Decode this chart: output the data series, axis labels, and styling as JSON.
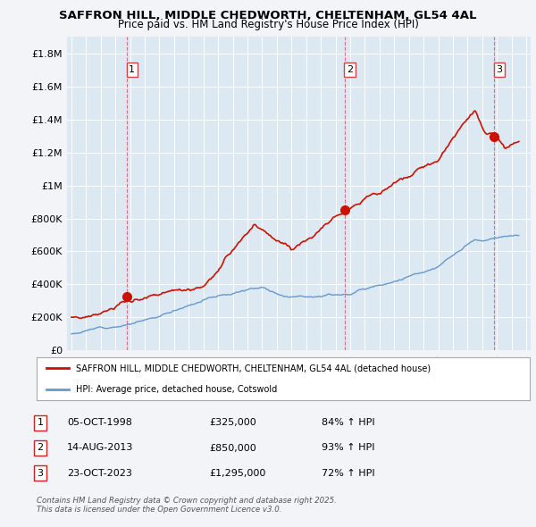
{
  "title": "SAFFRON HILL, MIDDLE CHEDWORTH, CHELTENHAM, GL54 4AL",
  "subtitle": "Price paid vs. HM Land Registry's House Price Index (HPI)",
  "legend_line1": "SAFFRON HILL, MIDDLE CHEDWORTH, CHELTENHAM, GL54 4AL (detached house)",
  "legend_line2": "HPI: Average price, detached house, Cotswold",
  "footer_line1": "Contains HM Land Registry data © Crown copyright and database right 2025.",
  "footer_line2": "This data is licensed under the Open Government Licence v3.0.",
  "transactions": [
    {
      "num": 1,
      "date": "05-OCT-1998",
      "price": "£325,000",
      "hpi": "84% ↑ HPI",
      "year": 1998.77
    },
    {
      "num": 2,
      "date": "14-AUG-2013",
      "price": "£850,000",
      "hpi": "93% ↑ HPI",
      "year": 2013.62
    },
    {
      "num": 3,
      "date": "23-OCT-2023",
      "price": "£1,295,000",
      "hpi": "72% ↑ HPI",
      "year": 2023.81
    }
  ],
  "transaction_prices": [
    325000,
    850000,
    1295000
  ],
  "hpi_color": "#6699cc",
  "price_color": "#cc1100",
  "dashed_line_color": "#cc4444",
  "background_color": "#f2f4f8",
  "plot_bg_color": "#dce8f2",
  "ylim": [
    0,
    1900000
  ],
  "yticks": [
    0,
    200000,
    400000,
    600000,
    800000,
    1000000,
    1200000,
    1400000,
    1600000,
    1800000
  ],
  "xlim_start": 1994.7,
  "xlim_end": 2026.3,
  "xticks": [
    1995,
    1996,
    1997,
    1998,
    1999,
    2000,
    2001,
    2002,
    2003,
    2004,
    2005,
    2006,
    2007,
    2008,
    2009,
    2010,
    2011,
    2012,
    2013,
    2014,
    2015,
    2016,
    2017,
    2018,
    2019,
    2020,
    2021,
    2022,
    2023,
    2024,
    2025,
    2026
  ]
}
